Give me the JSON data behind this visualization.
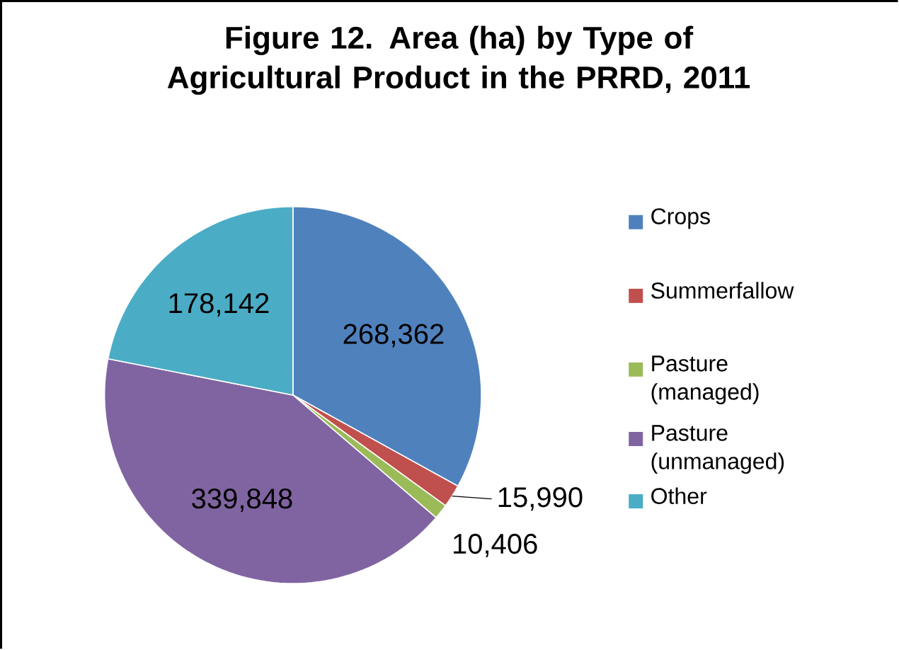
{
  "chart_data": {
    "type": "pie",
    "title": "Figure 12. Area (ha) by Type of Agricultural Product in the PRRD, 2011",
    "categories": [
      "Crops",
      "Summerfallow",
      "Pasture (managed)",
      "Pasture (unmanaged)",
      "Other"
    ],
    "values": [
      268362,
      15990,
      10406,
      339848,
      178142
    ],
    "colors": [
      "#4f81bd",
      "#c0504d",
      "#9bbb59",
      "#8064a2",
      "#4bacc6"
    ],
    "value_labels": [
      "268,362",
      "15,990",
      "10,406",
      "339,848",
      "178,142"
    ],
    "legend": "right"
  }
}
